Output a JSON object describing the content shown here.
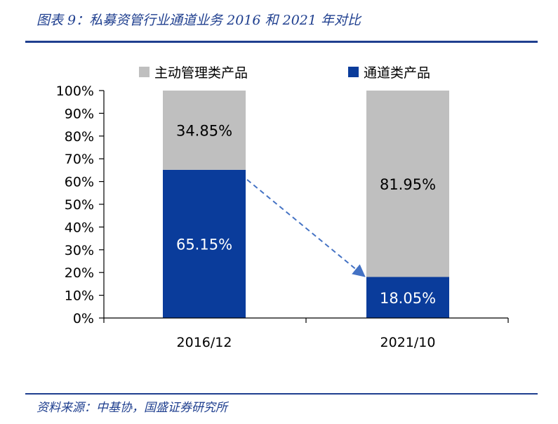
{
  "header": {
    "figure_title": "图表 9：私募资管行业通道业务 2016 和 2021 年对比"
  },
  "footer": {
    "source": "资料来源：中基协，国盛证券研究所"
  },
  "colors": {
    "accent": "#1f3f8f",
    "active": "#bfbfbf",
    "channel": "#0a3c9b",
    "arrow": "#4472c4"
  },
  "chart_data": {
    "type": "bar",
    "stacked": true,
    "categories": [
      "2016/12",
      "2021/10"
    ],
    "series": [
      {
        "name": "通道类产品",
        "values": [
          65.15,
          18.05
        ],
        "labels": [
          "65.15%",
          "18.05%"
        ],
        "color": "#0a3c9b",
        "label_color": "#ffffff"
      },
      {
        "name": "主动管理类产品",
        "values": [
          34.85,
          81.95
        ],
        "labels": [
          "34.85%",
          "81.95%"
        ],
        "color": "#bfbfbf",
        "label_color": "#000000"
      }
    ],
    "legend_order": [
      1,
      0
    ],
    "legend_position": "top",
    "ylim": [
      0,
      100
    ],
    "yticks": [
      0,
      10,
      20,
      30,
      40,
      50,
      60,
      70,
      80,
      90,
      100
    ],
    "ytick_labels": [
      "0%",
      "10%",
      "20%",
      "30%",
      "40%",
      "50%",
      "60%",
      "70%",
      "80%",
      "90%",
      "100%"
    ],
    "grid": false,
    "annotation": "dashed arrow from top of 2016/12 通道类产品 to top of 2021/10 通道类产品"
  }
}
